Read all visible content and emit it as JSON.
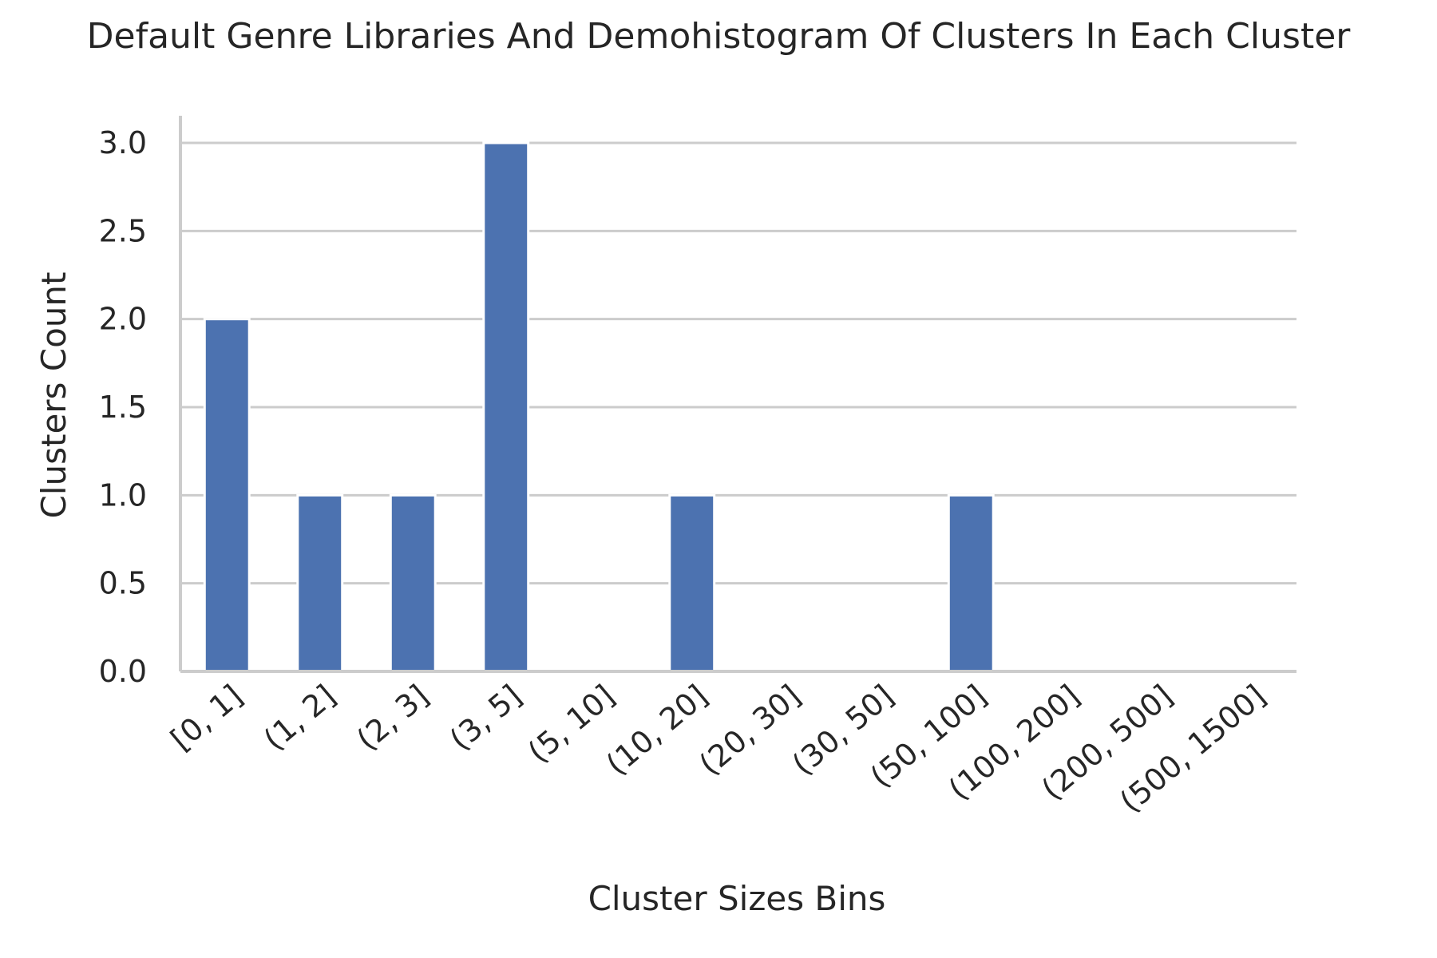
{
  "chart_data": {
    "type": "bar",
    "title": "Default Genre Libraries And Demohistogram Of Clusters In Each Cluster",
    "xlabel": "Cluster Sizes Bins",
    "ylabel": "Clusters Count",
    "categories": [
      "[0, 1]",
      "(1, 2]",
      "(2, 3]",
      "(3, 5]",
      "(5, 10]",
      "(10, 20]",
      "(20, 30]",
      "(30, 50]",
      "(50, 100]",
      "(100, 200]",
      "(200, 500]",
      "(500, 1500]"
    ],
    "values": [
      2,
      1,
      1,
      3,
      0,
      1,
      0,
      0,
      1,
      0,
      0,
      0
    ],
    "ylim": [
      0,
      3.15
    ],
    "yticks": [
      0.0,
      0.5,
      1.0,
      1.5,
      2.0,
      2.5,
      3.0
    ],
    "ytick_labels": [
      "0.0",
      "0.5",
      "1.0",
      "1.5",
      "2.0",
      "2.5",
      "3.0"
    ],
    "grid": "horizontal",
    "bar_color": "#4c72b0",
    "grid_color": "#cccccc",
    "text_color": "#262626"
  }
}
